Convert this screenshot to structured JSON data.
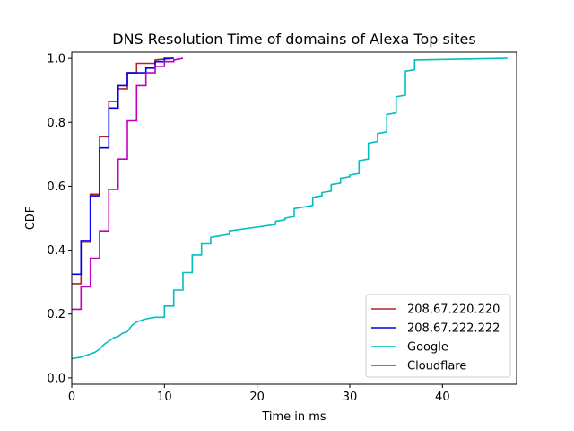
{
  "chart_data": {
    "type": "line",
    "title": "DNS Resolution Time of domains of Alexa Top sites",
    "xlabel": "Time in ms",
    "ylabel": "CDF",
    "xlim": [
      0,
      48
    ],
    "ylim": [
      -0.02,
      1.02
    ],
    "xticks": [
      "0",
      "10",
      "20",
      "30",
      "40"
    ],
    "yticks": [
      "0.0",
      "0.2",
      "0.4",
      "0.6",
      "0.8",
      "1.0"
    ],
    "grid": false,
    "legend_position": "lower-right",
    "series": [
      {
        "name": "208.67.220.220",
        "color": "#b22222",
        "x": [
          0,
          1,
          1,
          2,
          2,
          3,
          3,
          4,
          4,
          5,
          5,
          6,
          6,
          7,
          7,
          9,
          9,
          11
        ],
        "y": [
          0.295,
          0.295,
          0.425,
          0.425,
          0.575,
          0.575,
          0.755,
          0.755,
          0.865,
          0.865,
          0.905,
          0.905,
          0.955,
          0.955,
          0.985,
          0.985,
          0.995,
          1.0
        ]
      },
      {
        "name": "208.67.222.222",
        "color": "#0000ee",
        "x": [
          0,
          1,
          1,
          2,
          2,
          3,
          3,
          4,
          4,
          5,
          5,
          6,
          6,
          8,
          8,
          9,
          9,
          10,
          10,
          11
        ],
        "y": [
          0.325,
          0.325,
          0.43,
          0.43,
          0.57,
          0.57,
          0.72,
          0.72,
          0.845,
          0.845,
          0.915,
          0.915,
          0.955,
          0.955,
          0.97,
          0.97,
          0.99,
          0.99,
          1.0,
          1.0
        ]
      },
      {
        "name": "Google",
        "color": "#00bfbf",
        "x": [
          0,
          1,
          1.5,
          2,
          2.5,
          3,
          3.5,
          4,
          4.5,
          5,
          5.5,
          6,
          6.5,
          7,
          7.5,
          8,
          9,
          10,
          10,
          11,
          11,
          12,
          12,
          13,
          13,
          14,
          14,
          15,
          15,
          16,
          17,
          17,
          22,
          22,
          23,
          23,
          24,
          24,
          26,
          26,
          27,
          27,
          28,
          28,
          29,
          29,
          30,
          30,
          31,
          31,
          32,
          32,
          33,
          33,
          34,
          34,
          35,
          35,
          36,
          36,
          37,
          37,
          47
        ],
        "y": [
          0.06,
          0.065,
          0.07,
          0.075,
          0.08,
          0.09,
          0.105,
          0.115,
          0.125,
          0.13,
          0.14,
          0.145,
          0.165,
          0.175,
          0.18,
          0.185,
          0.19,
          0.19,
          0.225,
          0.225,
          0.275,
          0.275,
          0.33,
          0.33,
          0.385,
          0.385,
          0.42,
          0.42,
          0.44,
          0.445,
          0.45,
          0.46,
          0.48,
          0.49,
          0.495,
          0.5,
          0.505,
          0.53,
          0.54,
          0.565,
          0.57,
          0.58,
          0.585,
          0.605,
          0.61,
          0.625,
          0.63,
          0.635,
          0.64,
          0.68,
          0.685,
          0.735,
          0.74,
          0.765,
          0.77,
          0.825,
          0.83,
          0.88,
          0.885,
          0.96,
          0.965,
          0.995,
          1.0
        ]
      },
      {
        "name": "Cloudflare",
        "color": "#bf00bf",
        "x": [
          0,
          1,
          1,
          2,
          2,
          3,
          3,
          4,
          4,
          5,
          5,
          6,
          6,
          7,
          7,
          8,
          8,
          9,
          9,
          10,
          10,
          11,
          11,
          12
        ],
        "y": [
          0.215,
          0.215,
          0.285,
          0.285,
          0.375,
          0.375,
          0.46,
          0.46,
          0.59,
          0.59,
          0.685,
          0.685,
          0.805,
          0.805,
          0.915,
          0.915,
          0.955,
          0.955,
          0.975,
          0.975,
          0.99,
          0.99,
          0.995,
          1.0
        ]
      }
    ]
  }
}
